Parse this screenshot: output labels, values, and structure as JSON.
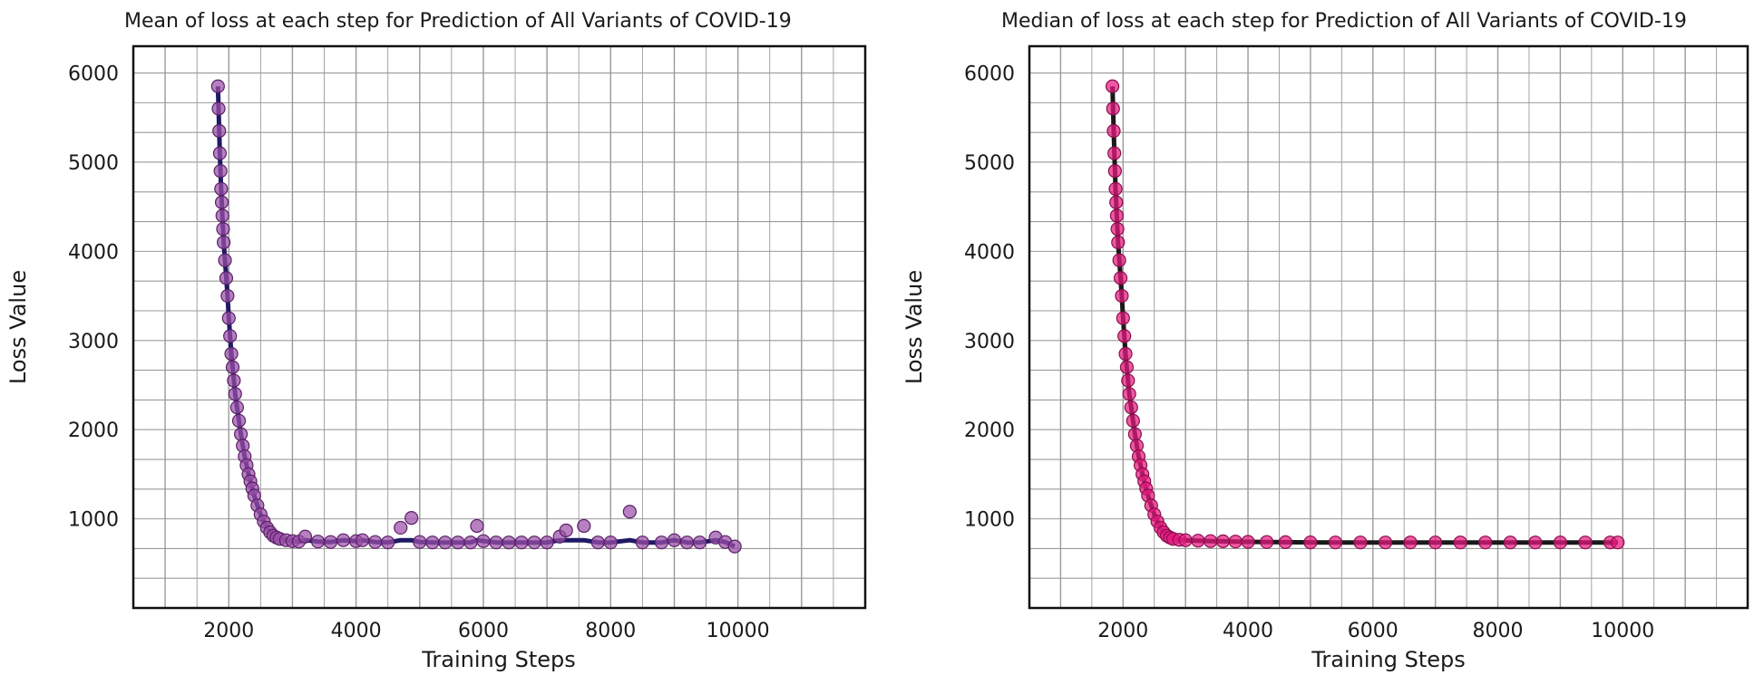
{
  "chart_data": [
    {
      "type": "scatter",
      "title": "Mean of loss at each step for Prediction of All Variants of COVID-19",
      "xlabel": "Training Steps",
      "ylabel": "Loss Value",
      "xlim": [
        500,
        12000
      ],
      "ylim": [
        0,
        6300
      ],
      "xticks": [
        2000,
        4000,
        6000,
        8000,
        10000
      ],
      "yticks": [
        1000,
        2000,
        3000,
        4000,
        5000,
        6000
      ],
      "grid": true,
      "colors": {
        "point": "#9b4fa8",
        "point_edge": "#5a2066",
        "fit": "#1e1a66"
      },
      "series": [
        {
          "x": [
            1830,
            1840,
            1850,
            1860,
            1870,
            1880,
            1890,
            1900,
            1910,
            1920,
            1940,
            1960,
            1980,
            2000,
            2020,
            2040,
            2060,
            2080,
            2100,
            2130,
            2160,
            2190,
            2220,
            2250,
            2280,
            2310,
            2340,
            2370,
            2400,
            2450,
            2500,
            2550,
            2600,
            2650,
            2700,
            2750,
            2800,
            2900,
            3000,
            3100,
            3200,
            3400,
            3600,
            3800,
            4000,
            4100,
            4300,
            4500,
            4700,
            4870,
            5000,
            5200,
            5400,
            5600,
            5800,
            5900,
            6000,
            6200,
            6400,
            6600,
            6800,
            7000,
            7200,
            7300,
            7580,
            7800,
            8000,
            8300,
            8500,
            8800,
            9000,
            9200,
            9400,
            9650,
            9800,
            9950
          ],
          "y": [
            5850,
            5600,
            5350,
            5100,
            4900,
            4700,
            4550,
            4400,
            4250,
            4100,
            3900,
            3700,
            3500,
            3250,
            3050,
            2850,
            2700,
            2550,
            2400,
            2250,
            2100,
            1950,
            1820,
            1700,
            1600,
            1500,
            1420,
            1340,
            1260,
            1150,
            1050,
            970,
            900,
            850,
            810,
            790,
            775,
            760,
            750,
            745,
            800,
            745,
            740,
            760,
            750,
            760,
            740,
            735,
            900,
            1010,
            740,
            735,
            735,
            735,
            735,
            920,
            750,
            735,
            735,
            735,
            735,
            735,
            800,
            870,
            920,
            735,
            735,
            1080,
            735,
            735,
            760,
            735,
            735,
            790,
            740,
            690
          ]
        }
      ]
    },
    {
      "type": "scatter",
      "title": "Median of loss at each step for Prediction of All Variants of COVID-19",
      "xlabel": "Training Steps",
      "ylabel": "Loss Value",
      "xlim": [
        500,
        12000
      ],
      "ylim": [
        0,
        6300
      ],
      "xticks": [
        2000,
        4000,
        6000,
        8000,
        10000
      ],
      "yticks": [
        1000,
        2000,
        3000,
        4000,
        5000,
        6000
      ],
      "grid": true,
      "colors": {
        "point": "#e8197f",
        "point_edge": "#8a0f4c",
        "fit": "#1a1a1a"
      },
      "series": [
        {
          "x": [
            1830,
            1840,
            1850,
            1860,
            1870,
            1880,
            1890,
            1900,
            1910,
            1920,
            1940,
            1960,
            1980,
            2000,
            2020,
            2040,
            2060,
            2080,
            2100,
            2130,
            2160,
            2190,
            2220,
            2250,
            2280,
            2310,
            2340,
            2370,
            2400,
            2450,
            2500,
            2550,
            2600,
            2650,
            2700,
            2750,
            2800,
            2900,
            3000,
            3200,
            3400,
            3600,
            3800,
            4000,
            4300,
            4600,
            5000,
            5400,
            5800,
            6200,
            6600,
            7000,
            7400,
            7800,
            8200,
            8600,
            9000,
            9400,
            9800,
            9920
          ],
          "y": [
            5850,
            5600,
            5350,
            5100,
            4900,
            4700,
            4550,
            4400,
            4250,
            4100,
            3900,
            3700,
            3500,
            3250,
            3050,
            2850,
            2700,
            2550,
            2400,
            2250,
            2100,
            1950,
            1820,
            1700,
            1600,
            1500,
            1420,
            1340,
            1260,
            1150,
            1050,
            970,
            900,
            850,
            810,
            790,
            775,
            765,
            760,
            755,
            750,
            748,
            745,
            742,
            740,
            738,
            736,
            735,
            735,
            735,
            735,
            735,
            735,
            735,
            735,
            735,
            735,
            735,
            735,
            735
          ]
        }
      ]
    }
  ]
}
